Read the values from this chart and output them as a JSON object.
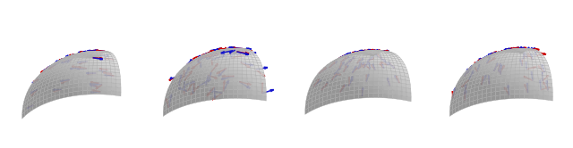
{
  "figure_width": 6.4,
  "figure_height": 1.66,
  "dpi": 100,
  "background_color": "#ffffff",
  "panels": [
    {
      "id": 0,
      "elev": 25,
      "azim": 200,
      "seed": 42,
      "n_vectors": 38,
      "vector_scale": 0.13,
      "noise_scale": 0.4,
      "pattern": "horizontal"
    },
    {
      "id": 1,
      "elev": 20,
      "azim": 205,
      "seed": 7,
      "n_vectors": 48,
      "vector_scale": 0.18,
      "noise_scale": 1.2,
      "pattern": "noisy"
    },
    {
      "id": 2,
      "elev": 22,
      "azim": 210,
      "seed": 123,
      "n_vectors": 55,
      "vector_scale": 0.13,
      "noise_scale": 0.3,
      "pattern": "swirl"
    },
    {
      "id": 3,
      "elev": 20,
      "azim": 205,
      "seed": 99,
      "n_vectors": 50,
      "vector_scale": 0.15,
      "noise_scale": 0.6,
      "pattern": "vertical"
    }
  ],
  "red_color": "#cc0000",
  "blue_color": "#1111cc",
  "sphere_alpha": 0.92,
  "arrow_lw": 1.1
}
